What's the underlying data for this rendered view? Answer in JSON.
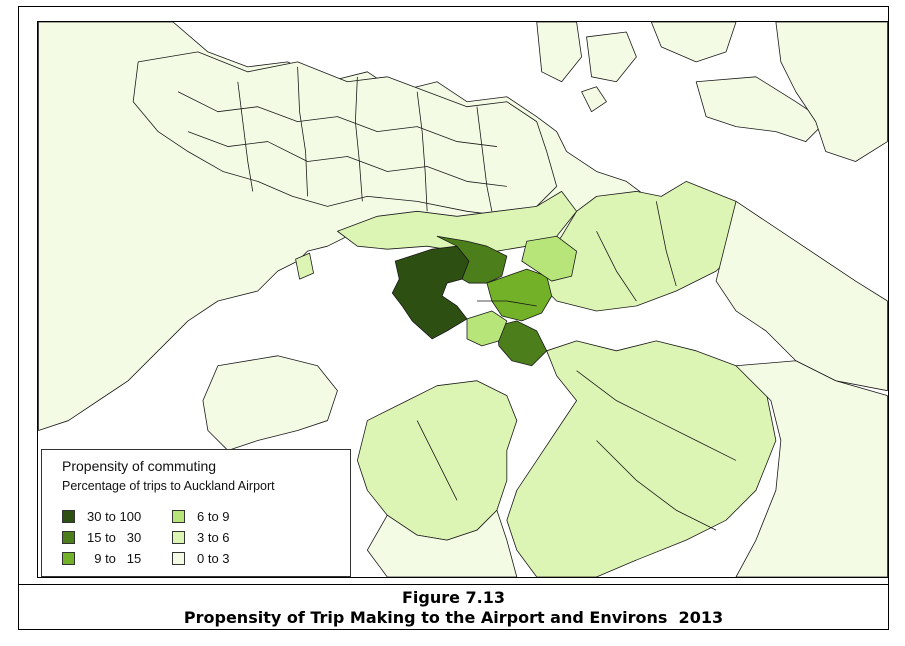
{
  "legend": {
    "title": "Propensity of commuting",
    "subtitle": "Percentage of trips to Auckland Airport",
    "classes": [
      {
        "label": "30 to 100",
        "color": "#2d4f12"
      },
      {
        "label": "15 to   30",
        "color": "#4c7f1c"
      },
      {
        "label": "  9 to   15",
        "color": "#73b228"
      },
      {
        "label": "6 to 9",
        "color": "#b8e57a"
      },
      {
        "label": "3 to 6",
        "color": "#ddf5b4"
      },
      {
        "label": "0 to 3",
        "color": "#f4fbe5"
      }
    ]
  },
  "caption": {
    "figure_number": "Figure 7.13",
    "title": "Propensity of Trip Making to the Airport and Environs  2013"
  },
  "map": {
    "water_color": "#ffffff",
    "boundary_color": "#1a1a1a"
  }
}
